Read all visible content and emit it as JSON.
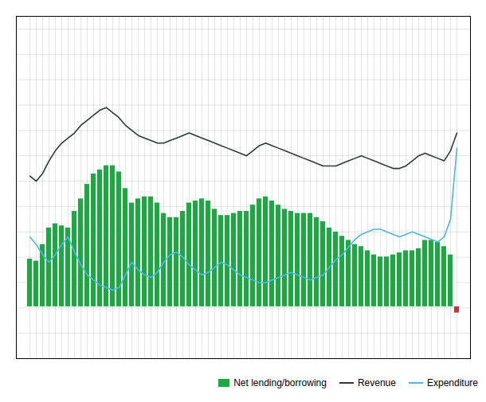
{
  "chart_data": {
    "type": "bar",
    "categories": [
      null,
      null,
      null,
      null,
      null,
      null,
      null,
      null,
      null,
      null,
      null,
      null,
      null,
      null,
      null,
      null,
      null,
      null,
      null,
      null,
      null,
      null,
      null,
      null,
      null,
      null,
      null,
      null,
      null,
      null,
      null,
      null,
      null,
      null,
      null,
      null,
      null,
      null,
      null,
      null,
      null,
      null,
      null,
      null,
      null,
      null,
      null,
      null,
      null,
      null,
      null,
      null,
      null,
      null,
      null,
      null,
      null,
      null,
      null,
      null,
      null,
      null,
      null,
      null,
      null,
      null,
      null,
      null
    ],
    "series": [
      {
        "name": "Net lending/borrowing",
        "type": "bar",
        "axis": "y2",
        "color": "#1aab40",
        "colors": [
          "#1aab40",
          "#1aab40",
          "#1aab40",
          "#1aab40",
          "#1aab40",
          "#1aab40",
          "#1aab40",
          "#1aab40",
          "#1aab40",
          "#1aab40",
          "#1aab40",
          "#1aab40",
          "#1aab40",
          "#1aab40",
          "#1aab40",
          "#1aab40",
          "#1aab40",
          "#1aab40",
          "#1aab40",
          "#1aab40",
          "#1aab40",
          "#1aab40",
          "#1aab40",
          "#1aab40",
          "#1aab40",
          "#1aab40",
          "#1aab40",
          "#1aab40",
          "#1aab40",
          "#1aab40",
          "#1aab40",
          "#1aab40",
          "#1aab40",
          "#1aab40",
          "#1aab40",
          "#1aab40",
          "#1aab40",
          "#1aab40",
          "#1aab40",
          "#1aab40",
          "#1aab40",
          "#1aab40",
          "#1aab40",
          "#1aab40",
          "#1aab40",
          "#1aab40",
          "#1aab40",
          "#1aab40",
          "#1aab40",
          "#1aab40",
          "#1aab40",
          "#1aab40",
          "#1aab40",
          "#1aab40",
          "#1aab40",
          "#1aab40",
          "#1aab40",
          "#1aab40",
          "#1aab40",
          "#1aab40",
          "#1aab40",
          "#1aab40",
          "#1aab40",
          "#1aab40",
          "#1aab40",
          "#1aab40",
          "#1aab40",
          "#cc3333"
        ],
        "values": [
          2.3,
          2.2,
          3.0,
          3.8,
          4.0,
          3.9,
          3.8,
          4.6,
          5.2,
          5.9,
          6.4,
          6.6,
          6.8,
          6.8,
          6.5,
          5.7,
          5.0,
          5.2,
          5.3,
          5.3,
          5.0,
          4.5,
          4.3,
          4.3,
          4.6,
          5.0,
          5.1,
          5.2,
          5.1,
          4.7,
          4.4,
          4.4,
          4.5,
          4.6,
          4.6,
          4.9,
          5.2,
          5.3,
          5.1,
          4.9,
          4.7,
          4.6,
          4.5,
          4.5,
          4.5,
          4.3,
          4.1,
          3.8,
          3.6,
          3.4,
          3.2,
          3.0,
          2.9,
          2.7,
          2.5,
          2.4,
          2.4,
          2.5,
          2.6,
          2.7,
          2.7,
          2.8,
          3.2,
          3.2,
          3.1,
          2.9,
          2.5,
          -0.3
        ]
      },
      {
        "name": "Revenue",
        "type": "line",
        "color": "#2d3a3a",
        "values": [
          36.2,
          36.0,
          36.3,
          36.8,
          37.2,
          37.5,
          37.7,
          37.9,
          38.2,
          38.4,
          38.6,
          38.8,
          38.9,
          38.7,
          38.5,
          38.2,
          38.0,
          37.8,
          37.7,
          37.6,
          37.5,
          37.5,
          37.6,
          37.7,
          37.8,
          37.9,
          37.8,
          37.7,
          37.6,
          37.5,
          37.4,
          37.3,
          37.2,
          37.1,
          37.0,
          37.2,
          37.4,
          37.5,
          37.4,
          37.3,
          37.2,
          37.1,
          37.0,
          36.9,
          36.8,
          36.7,
          36.6,
          36.6,
          36.6,
          36.7,
          36.8,
          36.9,
          37.0,
          36.9,
          36.8,
          36.7,
          36.6,
          36.5,
          36.5,
          36.6,
          36.8,
          37.0,
          37.1,
          37.0,
          36.9,
          36.8,
          37.2,
          37.9
        ]
      },
      {
        "name": "Expenditure",
        "type": "line",
        "color": "#4db8e8",
        "values": [
          33.8,
          33.5,
          33.1,
          32.8,
          33.1,
          33.5,
          33.8,
          33.2,
          32.7,
          32.3,
          32.1,
          31.9,
          31.8,
          31.7,
          31.8,
          32.3,
          32.8,
          32.5,
          32.3,
          32.2,
          32.4,
          32.8,
          33.1,
          33.2,
          33.0,
          32.7,
          32.5,
          32.3,
          32.4,
          32.6,
          32.8,
          32.7,
          32.5,
          32.3,
          32.2,
          32.1,
          32.0,
          32.0,
          32.1,
          32.2,
          32.3,
          32.4,
          32.3,
          32.2,
          32.1,
          32.2,
          32.3,
          32.6,
          32.9,
          33.1,
          33.4,
          33.7,
          33.9,
          34.0,
          34.1,
          34.1,
          34.0,
          33.9,
          33.8,
          33.9,
          34.0,
          33.9,
          33.8,
          33.7,
          33.6,
          33.8,
          34.5,
          37.3
        ]
      }
    ],
    "ylim": [
      29.0,
      42.5
    ],
    "yticks": [
      29,
      30,
      31,
      32,
      33,
      34,
      35,
      36,
      37,
      38,
      39,
      40,
      41,
      42
    ],
    "y2lim": [
      -2.5,
      14.0
    ],
    "grid": true,
    "tick_labels": false,
    "legend": "lower right"
  }
}
